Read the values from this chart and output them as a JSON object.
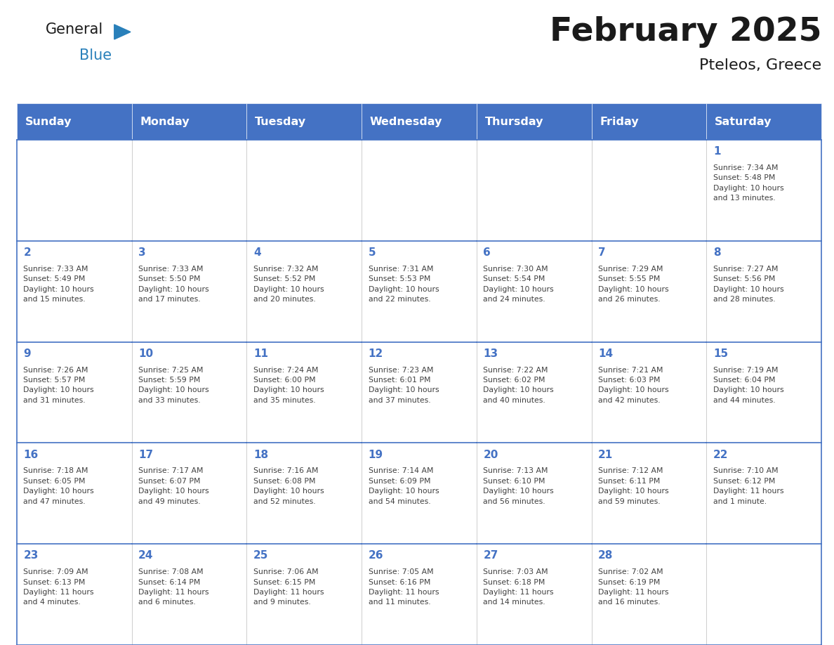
{
  "title": "February 2025",
  "subtitle": "Pteleos, Greece",
  "header_bg": "#4472C4",
  "header_text_color": "#FFFFFF",
  "border_color": "#4472C4",
  "day_headers": [
    "Sunday",
    "Monday",
    "Tuesday",
    "Wednesday",
    "Thursday",
    "Friday",
    "Saturday"
  ],
  "title_color": "#1a1a1a",
  "subtitle_color": "#1a1a1a",
  "day_num_color": "#4472C4",
  "info_color": "#404040",
  "logo_general_color": "#1a1a1a",
  "logo_blue_color": "#2980BA",
  "logo_triangle_color": "#2980BA",
  "weeks": [
    [
      {
        "day": "",
        "info": ""
      },
      {
        "day": "",
        "info": ""
      },
      {
        "day": "",
        "info": ""
      },
      {
        "day": "",
        "info": ""
      },
      {
        "day": "",
        "info": ""
      },
      {
        "day": "",
        "info": ""
      },
      {
        "day": "1",
        "info": "Sunrise: 7:34 AM\nSunset: 5:48 PM\nDaylight: 10 hours\nand 13 minutes."
      }
    ],
    [
      {
        "day": "2",
        "info": "Sunrise: 7:33 AM\nSunset: 5:49 PM\nDaylight: 10 hours\nand 15 minutes."
      },
      {
        "day": "3",
        "info": "Sunrise: 7:33 AM\nSunset: 5:50 PM\nDaylight: 10 hours\nand 17 minutes."
      },
      {
        "day": "4",
        "info": "Sunrise: 7:32 AM\nSunset: 5:52 PM\nDaylight: 10 hours\nand 20 minutes."
      },
      {
        "day": "5",
        "info": "Sunrise: 7:31 AM\nSunset: 5:53 PM\nDaylight: 10 hours\nand 22 minutes."
      },
      {
        "day": "6",
        "info": "Sunrise: 7:30 AM\nSunset: 5:54 PM\nDaylight: 10 hours\nand 24 minutes."
      },
      {
        "day": "7",
        "info": "Sunrise: 7:29 AM\nSunset: 5:55 PM\nDaylight: 10 hours\nand 26 minutes."
      },
      {
        "day": "8",
        "info": "Sunrise: 7:27 AM\nSunset: 5:56 PM\nDaylight: 10 hours\nand 28 minutes."
      }
    ],
    [
      {
        "day": "9",
        "info": "Sunrise: 7:26 AM\nSunset: 5:57 PM\nDaylight: 10 hours\nand 31 minutes."
      },
      {
        "day": "10",
        "info": "Sunrise: 7:25 AM\nSunset: 5:59 PM\nDaylight: 10 hours\nand 33 minutes."
      },
      {
        "day": "11",
        "info": "Sunrise: 7:24 AM\nSunset: 6:00 PM\nDaylight: 10 hours\nand 35 minutes."
      },
      {
        "day": "12",
        "info": "Sunrise: 7:23 AM\nSunset: 6:01 PM\nDaylight: 10 hours\nand 37 minutes."
      },
      {
        "day": "13",
        "info": "Sunrise: 7:22 AM\nSunset: 6:02 PM\nDaylight: 10 hours\nand 40 minutes."
      },
      {
        "day": "14",
        "info": "Sunrise: 7:21 AM\nSunset: 6:03 PM\nDaylight: 10 hours\nand 42 minutes."
      },
      {
        "day": "15",
        "info": "Sunrise: 7:19 AM\nSunset: 6:04 PM\nDaylight: 10 hours\nand 44 minutes."
      }
    ],
    [
      {
        "day": "16",
        "info": "Sunrise: 7:18 AM\nSunset: 6:05 PM\nDaylight: 10 hours\nand 47 minutes."
      },
      {
        "day": "17",
        "info": "Sunrise: 7:17 AM\nSunset: 6:07 PM\nDaylight: 10 hours\nand 49 minutes."
      },
      {
        "day": "18",
        "info": "Sunrise: 7:16 AM\nSunset: 6:08 PM\nDaylight: 10 hours\nand 52 minutes."
      },
      {
        "day": "19",
        "info": "Sunrise: 7:14 AM\nSunset: 6:09 PM\nDaylight: 10 hours\nand 54 minutes."
      },
      {
        "day": "20",
        "info": "Sunrise: 7:13 AM\nSunset: 6:10 PM\nDaylight: 10 hours\nand 56 minutes."
      },
      {
        "day": "21",
        "info": "Sunrise: 7:12 AM\nSunset: 6:11 PM\nDaylight: 10 hours\nand 59 minutes."
      },
      {
        "day": "22",
        "info": "Sunrise: 7:10 AM\nSunset: 6:12 PM\nDaylight: 11 hours\nand 1 minute."
      }
    ],
    [
      {
        "day": "23",
        "info": "Sunrise: 7:09 AM\nSunset: 6:13 PM\nDaylight: 11 hours\nand 4 minutes."
      },
      {
        "day": "24",
        "info": "Sunrise: 7:08 AM\nSunset: 6:14 PM\nDaylight: 11 hours\nand 6 minutes."
      },
      {
        "day": "25",
        "info": "Sunrise: 7:06 AM\nSunset: 6:15 PM\nDaylight: 11 hours\nand 9 minutes."
      },
      {
        "day": "26",
        "info": "Sunrise: 7:05 AM\nSunset: 6:16 PM\nDaylight: 11 hours\nand 11 minutes."
      },
      {
        "day": "27",
        "info": "Sunrise: 7:03 AM\nSunset: 6:18 PM\nDaylight: 11 hours\nand 14 minutes."
      },
      {
        "day": "28",
        "info": "Sunrise: 7:02 AM\nSunset: 6:19 PM\nDaylight: 11 hours\nand 16 minutes."
      },
      {
        "day": "",
        "info": ""
      }
    ]
  ]
}
